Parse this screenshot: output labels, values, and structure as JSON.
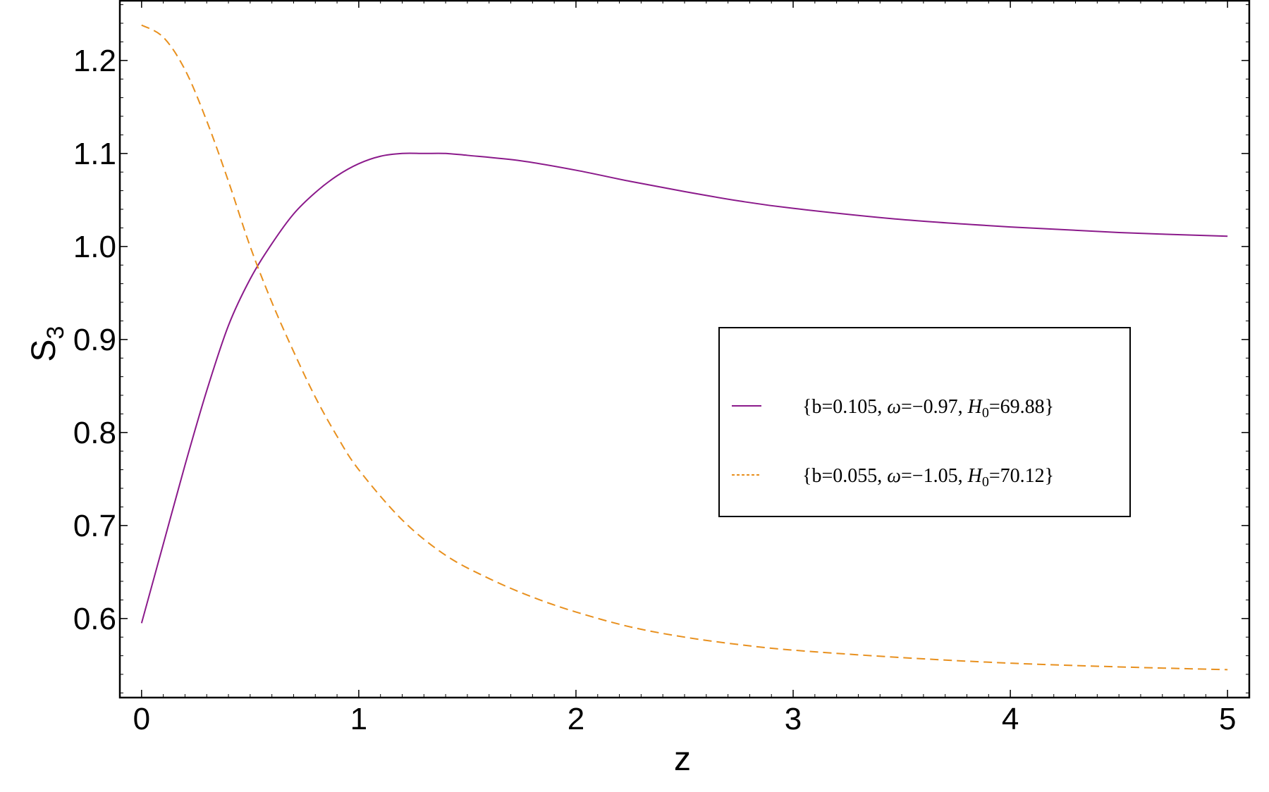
{
  "chart_data": {
    "type": "line",
    "xlabel": "z",
    "ylabel": "S",
    "ylabel_sub": "3",
    "xlim": [
      -0.1,
      5.1
    ],
    "ylim": [
      0.515,
      1.265
    ],
    "xticks": [
      0,
      1,
      2,
      3,
      4,
      5
    ],
    "xtick_labels": [
      "0",
      "1",
      "2",
      "3",
      "4",
      "5"
    ],
    "yticks": [
      0.6,
      0.7,
      0.8,
      0.9,
      1.0,
      1.1,
      1.2
    ],
    "ytick_labels": [
      "0.6",
      "0.7",
      "0.8",
      "0.9",
      "1.0",
      "1.1",
      "1.2"
    ],
    "grid": false,
    "legend_position": "center-right",
    "series": [
      {
        "name": "{b=0.105, ω=−0.97, H0=69.88}",
        "legend_parts": {
          "open": "{b=0.105, ",
          "omega": "ω",
          "mid": "=−0.97, ",
          "h": "H",
          "sub": "0",
          "close": "=69.88}"
        },
        "color": "#8b1a8b",
        "dash": "solid",
        "x": [
          0,
          0.1,
          0.2,
          0.3,
          0.4,
          0.5,
          0.6,
          0.7,
          0.8,
          0.9,
          1.0,
          1.1,
          1.2,
          1.3,
          1.4,
          1.5,
          1.75,
          2.0,
          2.25,
          2.5,
          2.75,
          3.0,
          3.5,
          4.0,
          4.5,
          5.0
        ],
        "y": [
          0.595,
          0.68,
          0.765,
          0.845,
          0.915,
          0.965,
          1.003,
          1.035,
          1.058,
          1.076,
          1.089,
          1.097,
          1.1,
          1.1,
          1.1,
          1.098,
          1.092,
          1.082,
          1.07,
          1.059,
          1.049,
          1.041,
          1.029,
          1.021,
          1.015,
          1.011
        ]
      },
      {
        "name": "{b=0.055, ω=−1.05, H0=70.12}",
        "legend_parts": {
          "open": "{b=0.055, ",
          "omega": "ω",
          "mid": "=−1.05, ",
          "h": "H",
          "sub": "0",
          "close": "=70.12}"
        },
        "color": "#e8901e",
        "dash": "dashed",
        "x": [
          0,
          0.1,
          0.2,
          0.3,
          0.4,
          0.5,
          0.6,
          0.7,
          0.8,
          0.9,
          1.0,
          1.2,
          1.4,
          1.6,
          1.8,
          2.0,
          2.25,
          2.5,
          2.75,
          3.0,
          3.5,
          4.0,
          4.5,
          5.0
        ],
        "y": [
          1.238,
          1.225,
          1.19,
          1.135,
          1.07,
          1.0,
          0.94,
          0.887,
          0.838,
          0.796,
          0.76,
          0.706,
          0.668,
          0.643,
          0.623,
          0.607,
          0.591,
          0.58,
          0.572,
          0.566,
          0.558,
          0.552,
          0.548,
          0.545
        ]
      }
    ]
  }
}
